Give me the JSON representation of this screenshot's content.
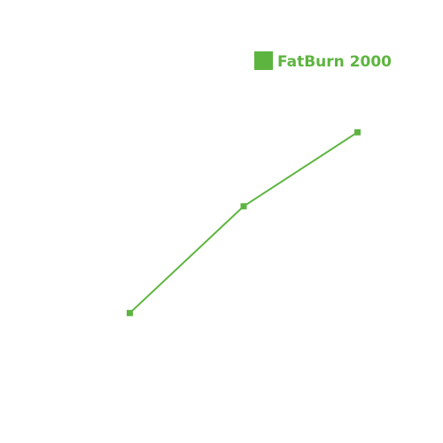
{
  "chart_data": {
    "type": "line",
    "x": [
      1,
      2,
      3
    ],
    "series": [
      {
        "name": "FatBurn 2000",
        "values": [
          1.0,
          1.75,
          2.27
        ],
        "color": "#5db53f",
        "marker": "square"
      }
    ],
    "xlim": [
      0,
      4
    ],
    "ylim": [
      0,
      3
    ],
    "grid": false,
    "axes_visible": false,
    "legend": {
      "position": "top-right"
    }
  }
}
